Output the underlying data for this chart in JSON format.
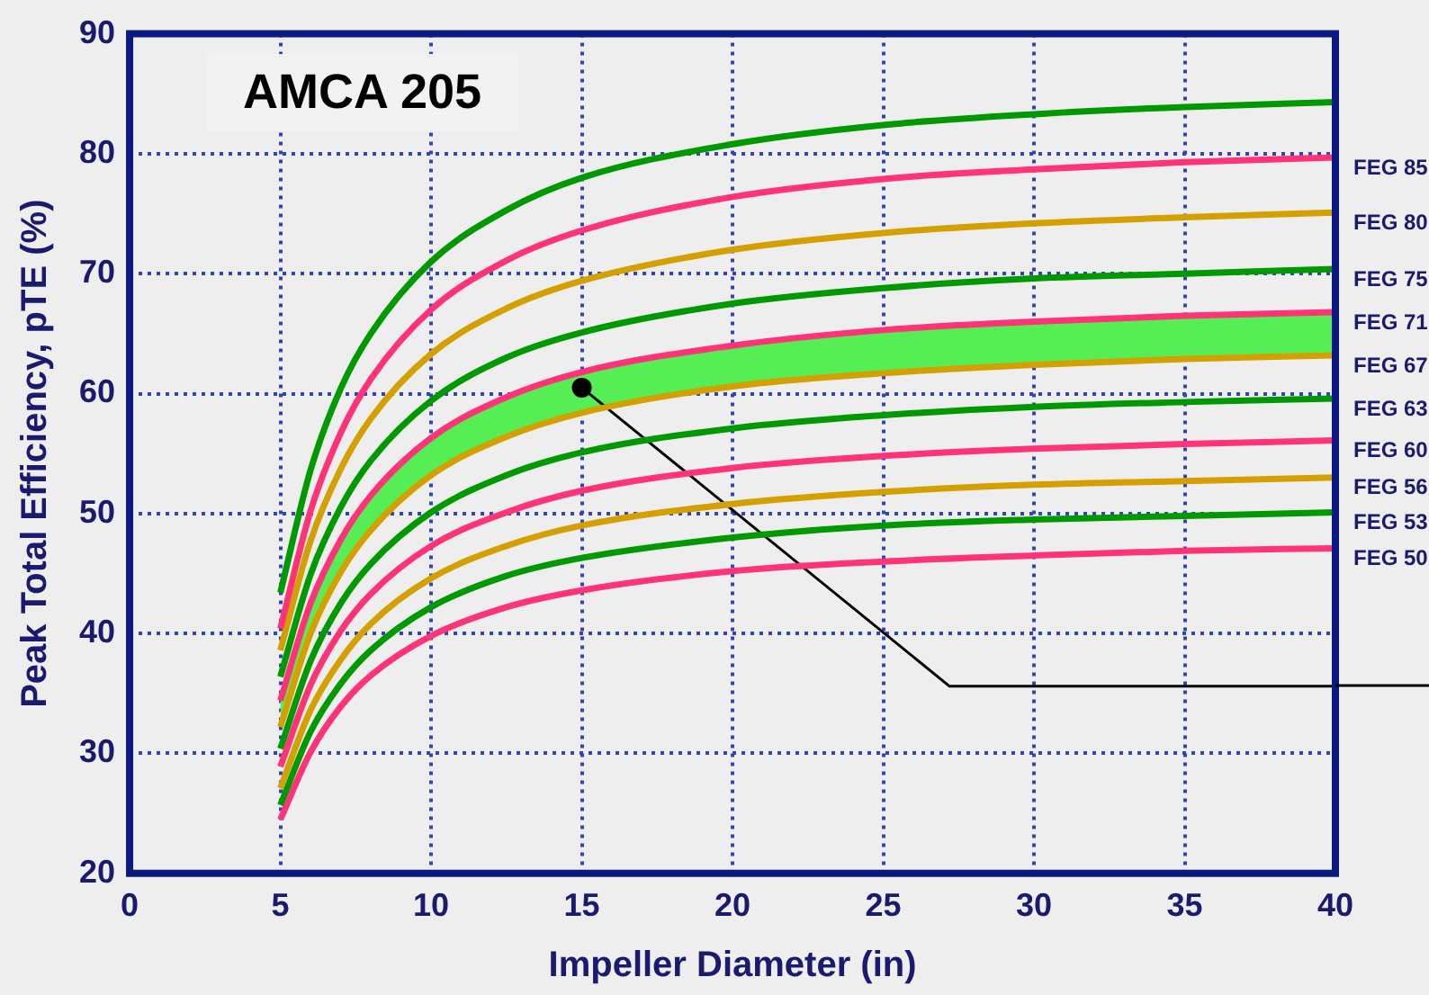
{
  "chart_data": {
    "type": "line",
    "xlabel": "Impeller Diameter (in)",
    "ylabel": "Peak Total Efficiency, pTE (%)",
    "annotations": [
      "AMCA 205"
    ],
    "x": [
      5,
      6,
      7,
      8,
      10,
      12.5,
      15,
      20,
      25,
      30,
      35,
      40
    ],
    "xlim": [
      0,
      40
    ],
    "xticks": [
      0,
      5,
      10,
      15,
      20,
      25,
      30,
      35,
      40
    ],
    "ylim": [
      20,
      90
    ],
    "yticks": [
      20,
      30,
      40,
      50,
      60,
      70,
      80,
      90
    ],
    "grid": true,
    "legend": false,
    "marker": "none",
    "line_style": "solid",
    "series": [
      {
        "color": "#009900",
        "values": [
          43.4,
          53.6,
          60.4,
          65.0,
          71.0,
          75.3,
          78.0,
          80.8,
          82.4,
          83.3,
          83.9,
          84.3
        ]
      },
      {
        "name": "FEG 85",
        "color": "#ff3377",
        "values": [
          40.4,
          50.2,
          56.7,
          61.2,
          67.0,
          71.1,
          73.6,
          76.4,
          77.9,
          78.7,
          79.3,
          79.7
        ]
      },
      {
        "name": "FEG 80",
        "color": "#d4a000",
        "values": [
          38.6,
          47.7,
          53.7,
          57.9,
          63.3,
          67.1,
          69.4,
          72.0,
          73.4,
          74.2,
          74.7,
          75.1
        ]
      },
      {
        "name": "FEG 75",
        "color": "#009900",
        "values": [
          36.4,
          44.9,
          50.5,
          54.4,
          59.4,
          63.0,
          65.1,
          67.5,
          68.8,
          69.6,
          70.0,
          70.4
        ]
      },
      {
        "name": "FEG 71",
        "color": "#ff3377",
        "values": [
          34.4,
          42.5,
          47.8,
          51.5,
          56.3,
          59.7,
          61.8,
          64.0,
          65.3,
          66.0,
          66.5,
          66.8
        ]
      },
      {
        "type": "area",
        "color": "#55ee55",
        "values": [
          34.4,
          42.5,
          47.8,
          51.5,
          56.3,
          59.7,
          61.8,
          64.0,
          65.3,
          66.0,
          66.5,
          66.8
        ]
      },
      {
        "name": "FEG 67",
        "color": "#d4a000",
        "values": [
          32.2,
          40.0,
          45.1,
          48.6,
          53.2,
          56.4,
          58.4,
          60.6,
          61.7,
          62.4,
          62.9,
          63.2
        ]
      },
      {
        "name": "FEG 63",
        "color": "#009900",
        "values": [
          30.4,
          37.7,
          42.5,
          45.8,
          50.1,
          53.2,
          55.1,
          57.1,
          58.2,
          58.9,
          59.3,
          59.6
        ]
      },
      {
        "name": "FEG 60",
        "color": "#ff3377",
        "values": [
          28.9,
          35.7,
          40.2,
          43.3,
          47.3,
          50.1,
          51.9,
          53.8,
          54.8,
          55.4,
          55.8,
          56.1
        ]
      },
      {
        "name": "FEG 56",
        "color": "#d4a000",
        "values": [
          27.1,
          33.6,
          37.8,
          40.8,
          44.6,
          47.3,
          49.0,
          50.8,
          51.8,
          52.4,
          52.7,
          53.0
        ]
      },
      {
        "name": "FEG 53",
        "color": "#009900",
        "values": [
          25.7,
          31.8,
          35.8,
          38.6,
          42.2,
          44.8,
          46.3,
          48.0,
          49.0,
          49.5,
          49.8,
          50.1
        ]
      },
      {
        "name": "FEG 50",
        "color": "#ff3377",
        "values": [
          24.5,
          30.1,
          33.9,
          36.5,
          39.8,
          42.2,
          43.6,
          45.2,
          46.0,
          46.5,
          46.9,
          47.1
        ]
      },
      {
        "type": "line",
        "color": "#000000",
        "x": [
          15,
          27.2,
          40
        ],
        "values": [
          60.5,
          35.6,
          35.6
        ]
      },
      {
        "type": "scatter",
        "color": "#000000",
        "marker": "circle",
        "x": [
          15
        ],
        "values": [
          60.5
        ]
      }
    ]
  }
}
